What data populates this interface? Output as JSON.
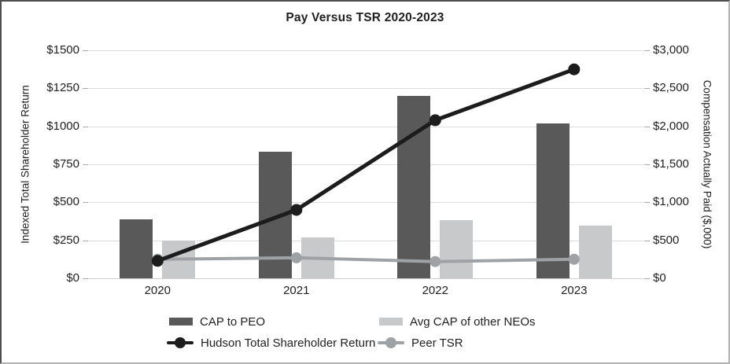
{
  "title": "Pay Versus TSR 2020-2023",
  "left_axis": {
    "title": "Indexed Total Shareholder Return",
    "ticks": [
      "$0",
      "$250",
      "$500",
      "$750",
      "$1000",
      "$1250",
      "$1500"
    ]
  },
  "right_axis": {
    "title": "Compensation Actually Paid ($,000)",
    "ticks": [
      "$0",
      "$500",
      "$1,000",
      "$1,500",
      "$2,000",
      "$2,500",
      "$3,000"
    ]
  },
  "x_axis": {
    "labels": [
      "2020",
      "2021",
      "2022",
      "2023"
    ]
  },
  "legend": {
    "items": [
      {
        "label": "CAP to PEO",
        "swatch": "bar",
        "color": "#595959"
      },
      {
        "label": "Avg CAP of other NEOs",
        "swatch": "bar",
        "color": "#c8c9cb"
      },
      {
        "label": "Hudson Total Shareholder Return",
        "swatch": "line-dot",
        "color": "#1c1c1c"
      },
      {
        "label": "Peer TSR",
        "swatch": "line-dot",
        "color": "#9fa2a5"
      }
    ]
  },
  "chart_data": {
    "type": "combo-bar-line",
    "title": "Pay Versus TSR 2020-2023",
    "categories": [
      "2020",
      "2021",
      "2022",
      "2023"
    ],
    "series": [
      {
        "name": "CAP to PEO",
        "type": "bar",
        "axis": "right",
        "color": "#595959",
        "values": [
          780,
          1670,
          2400,
          2040
        ]
      },
      {
        "name": "Avg CAP of other NEOs",
        "type": "bar",
        "axis": "right",
        "color": "#c8c9cb",
        "values": [
          500,
          540,
          770,
          690
        ]
      },
      {
        "name": "Hudson Total Shareholder Return",
        "type": "line",
        "axis": "left",
        "color": "#1c1c1c",
        "values": [
          115,
          450,
          1040,
          1375
        ]
      },
      {
        "name": "Peer TSR",
        "type": "line",
        "axis": "left",
        "color": "#9fa2a5",
        "values": [
          125,
          135,
          110,
          125
        ]
      }
    ],
    "left_axis_label": "Indexed Total Shareholder Return",
    "right_axis_label": "Compensation Actually Paid ($,000)",
    "left_ylim": [
      0,
      1500
    ],
    "right_ylim": [
      0,
      3000
    ],
    "left_tick_step": 250,
    "right_tick_step": 500,
    "grid": "horizontal",
    "legend_position": "bottom"
  },
  "colors": {
    "gridline": "#dcdcdc",
    "tick_text": "#212121",
    "bar_dark": "#595959",
    "bar_light": "#c8c9cb",
    "line_black": "#1c1c1c",
    "line_gray": "#9fa2a5"
  }
}
